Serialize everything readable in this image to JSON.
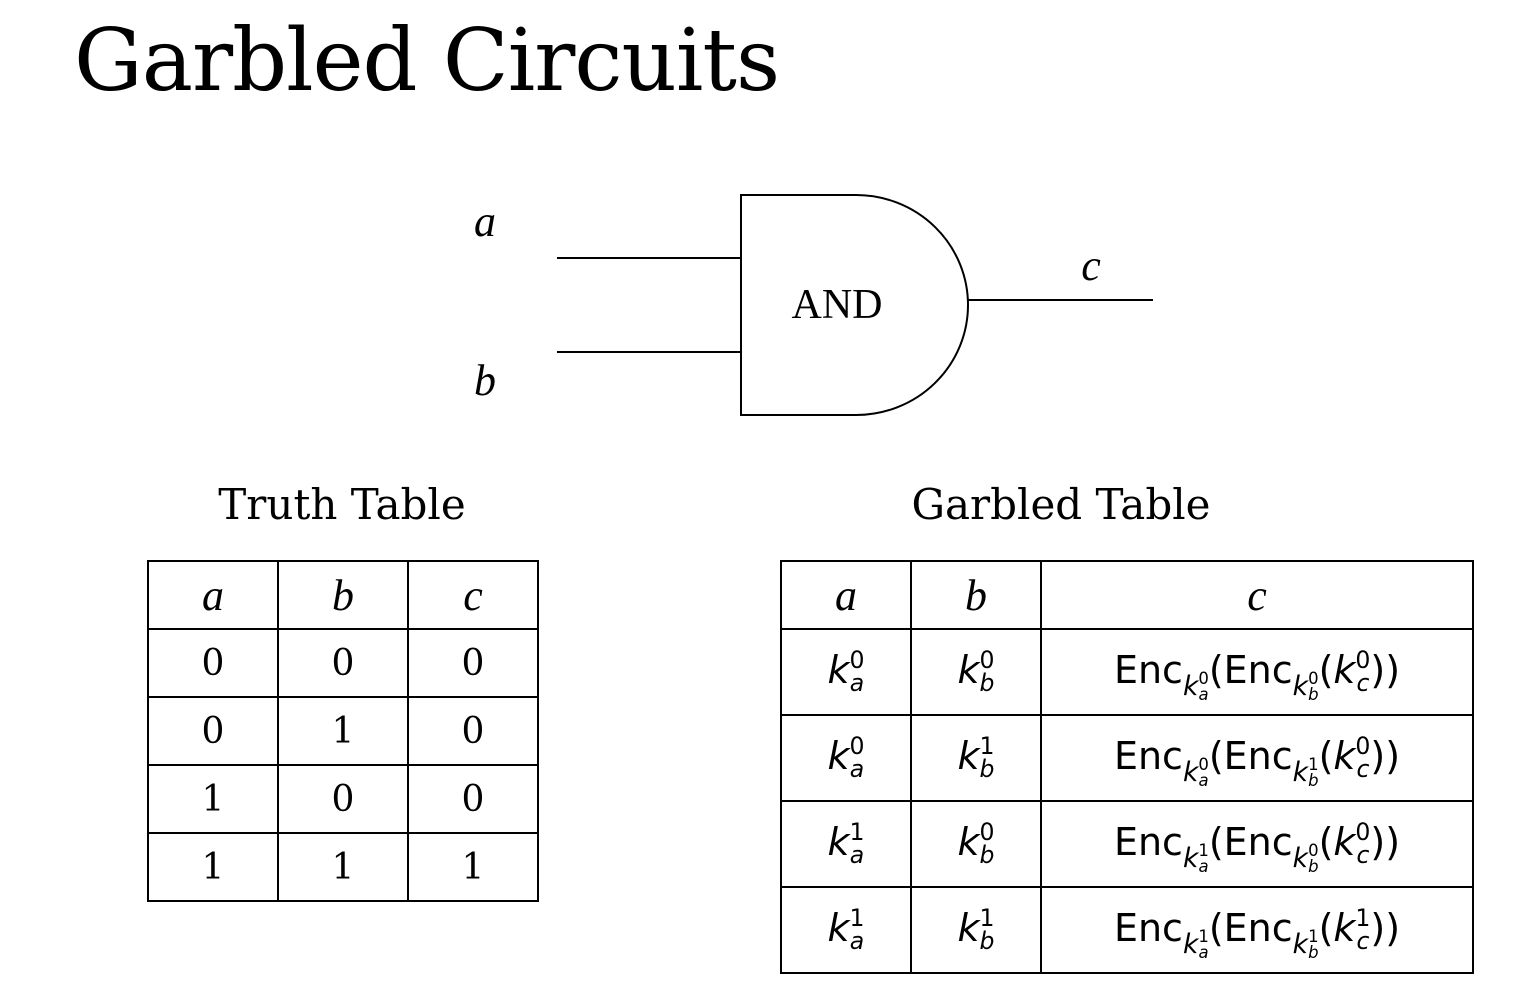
{
  "title": "Garbled Circuits",
  "gate": {
    "label": "AND",
    "input_a": "a",
    "input_b": "b",
    "output": "c"
  },
  "truth_table": {
    "title": "Truth Table",
    "headers": [
      "a",
      "b",
      "c"
    ],
    "rows": [
      [
        "0",
        "0",
        "0"
      ],
      [
        "0",
        "1",
        "0"
      ],
      [
        "1",
        "0",
        "0"
      ],
      [
        "1",
        "1",
        "1"
      ]
    ]
  },
  "garbled_table": {
    "title": "Garbled Table",
    "headers": [
      "a",
      "b",
      "c"
    ],
    "key_symbol": "k",
    "enc_word": "Enc",
    "rows": [
      {
        "a_bit": "0",
        "b_bit": "0",
        "c_bit": "0"
      },
      {
        "a_bit": "0",
        "b_bit": "1",
        "c_bit": "0"
      },
      {
        "a_bit": "1",
        "b_bit": "0",
        "c_bit": "0"
      },
      {
        "a_bit": "1",
        "b_bit": "1",
        "c_bit": "1"
      }
    ],
    "wire_a": "a",
    "wire_b": "b",
    "wire_c": "c"
  }
}
